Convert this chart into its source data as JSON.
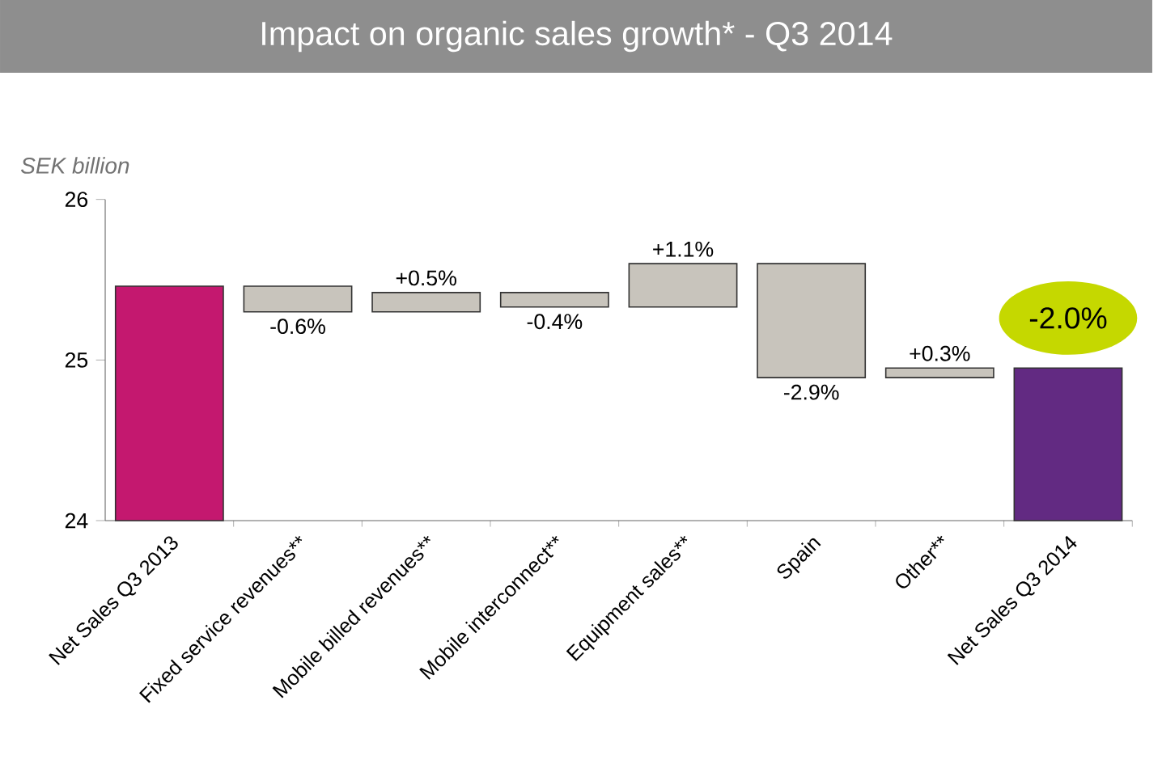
{
  "chart_data": {
    "type": "bar",
    "title": "Impact on organic sales growth* - Q3 2014",
    "ylabel": "SEK billion",
    "categories": [
      "Net Sales Q3 2013",
      "Fixed service revenues**",
      "Mobile billed revenues**",
      "Mobile interconnect**",
      "Equipment sales**",
      "Spain",
      "Other**",
      "Net Sales Q3 2014"
    ],
    "values": [
      1.46,
      -0.16,
      0.12,
      -0.09,
      0.27,
      -0.71,
      0.06,
      0.95
    ],
    "base": [
      24,
      25.46,
      25.3,
      25.42,
      25.33,
      25.6,
      24.89,
      24
    ],
    "colors": [
      "#c4186f",
      "#c8c4bc",
      "#c8c4bc",
      "#c8c4bc",
      "#c8c4bc",
      "#c8c4bc",
      "#c8c4bc",
      "#622a82"
    ],
    "annotations": [
      {
        "text": "-0.6%",
        "x": "Fixed service revenues**",
        "y": 25.3
      },
      {
        "text": "+0.5%",
        "x": "Mobile billed revenues**",
        "y": 25.42
      },
      {
        "text": "-0.4%",
        "x": "Mobile interconnect**",
        "y": 25.33
      },
      {
        "text": "+1.1%",
        "x": "Equipment sales**",
        "y": 25.6
      },
      {
        "text": "-2.9%",
        "x": "Spain",
        "y": 24.89
      },
      {
        "text": "+0.3%",
        "x": "Other**",
        "y": 24.95
      },
      {
        "text": "-2.0%",
        "x": "Net Sales Q3 2014",
        "y": 24.95
      }
    ],
    "ylim": [
      24,
      26
    ],
    "yticks": [
      24,
      25,
      26
    ],
    "grid": false
  }
}
